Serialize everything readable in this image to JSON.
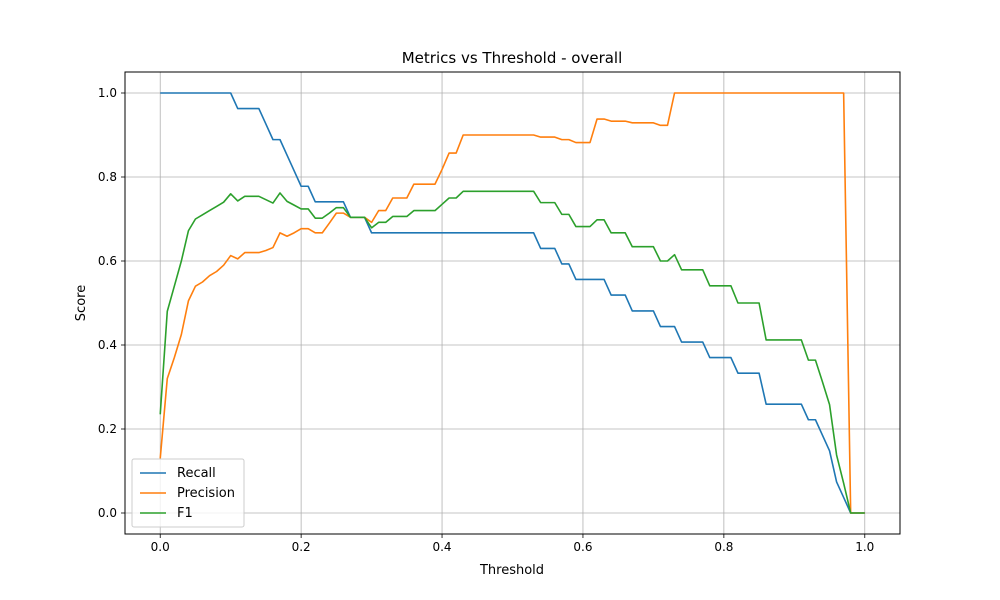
{
  "chart_data": {
    "type": "line",
    "title": "Metrics vs Threshold - overall",
    "xlabel": "Threshold",
    "ylabel": "Score",
    "xlim": [
      -0.05,
      1.05
    ],
    "ylim": [
      -0.05,
      1.05
    ],
    "xticks": [
      0.0,
      0.2,
      0.4,
      0.6,
      0.8,
      1.0
    ],
    "xtick_labels": [
      "0.0",
      "0.2",
      "0.4",
      "0.6",
      "0.8",
      "1.0"
    ],
    "yticks": [
      0.0,
      0.2,
      0.4,
      0.6,
      0.8,
      1.0
    ],
    "ytick_labels": [
      "0.0",
      "0.2",
      "0.4",
      "0.6",
      "0.8",
      "1.0"
    ],
    "grid": true,
    "legend_position": "lower-left",
    "x": [
      0.0,
      0.01,
      0.02,
      0.03,
      0.04,
      0.05,
      0.06,
      0.07,
      0.08,
      0.09,
      0.1,
      0.11,
      0.12,
      0.13,
      0.14,
      0.15,
      0.16,
      0.17,
      0.18,
      0.19,
      0.2,
      0.21,
      0.22,
      0.23,
      0.24,
      0.25,
      0.26,
      0.27,
      0.28,
      0.29,
      0.3,
      0.31,
      0.32,
      0.33,
      0.34,
      0.35,
      0.36,
      0.37,
      0.38,
      0.39,
      0.4,
      0.41,
      0.42,
      0.43,
      0.44,
      0.45,
      0.46,
      0.47,
      0.48,
      0.49,
      0.5,
      0.51,
      0.52,
      0.53,
      0.54,
      0.55,
      0.56,
      0.57,
      0.58,
      0.59,
      0.6,
      0.61,
      0.62,
      0.63,
      0.64,
      0.65,
      0.66,
      0.67,
      0.68,
      0.69,
      0.7,
      0.71,
      0.72,
      0.73,
      0.74,
      0.75,
      0.76,
      0.77,
      0.78,
      0.79,
      0.8,
      0.81,
      0.82,
      0.83,
      0.84,
      0.85,
      0.86,
      0.87,
      0.88,
      0.89,
      0.9,
      0.91,
      0.92,
      0.93,
      0.94,
      0.95,
      0.96,
      0.97,
      0.98,
      0.99,
      1.0
    ],
    "series": [
      {
        "name": "Recall",
        "color": "#1f77b4",
        "values": [
          1.0,
          1.0,
          1.0,
          1.0,
          1.0,
          1.0,
          1.0,
          1.0,
          1.0,
          1.0,
          1.0,
          0.963,
          0.963,
          0.963,
          0.963,
          0.926,
          0.889,
          0.889,
          0.852,
          0.815,
          0.778,
          0.778,
          0.741,
          0.741,
          0.741,
          0.741,
          0.741,
          0.704,
          0.704,
          0.704,
          0.667,
          0.667,
          0.667,
          0.667,
          0.667,
          0.667,
          0.667,
          0.667,
          0.667,
          0.667,
          0.667,
          0.667,
          0.667,
          0.667,
          0.667,
          0.667,
          0.667,
          0.667,
          0.667,
          0.667,
          0.667,
          0.667,
          0.667,
          0.667,
          0.63,
          0.63,
          0.63,
          0.593,
          0.593,
          0.556,
          0.556,
          0.556,
          0.556,
          0.556,
          0.519,
          0.519,
          0.519,
          0.481,
          0.481,
          0.481,
          0.481,
          0.444,
          0.444,
          0.444,
          0.407,
          0.407,
          0.407,
          0.407,
          0.37,
          0.37,
          0.37,
          0.37,
          0.333,
          0.333,
          0.333,
          0.333,
          0.259,
          0.259,
          0.259,
          0.259,
          0.259,
          0.259,
          0.222,
          0.222,
          0.185,
          0.148,
          0.074,
          0.037,
          0.0,
          0.0,
          0.0
        ]
      },
      {
        "name": "Precision",
        "color": "#ff7f0e",
        "values": [
          0.13,
          0.32,
          0.37,
          0.425,
          0.505,
          0.54,
          0.55,
          0.565,
          0.575,
          0.59,
          0.613,
          0.605,
          0.62,
          0.62,
          0.62,
          0.625,
          0.632,
          0.667,
          0.659,
          0.667,
          0.677,
          0.677,
          0.667,
          0.667,
          0.69,
          0.714,
          0.714,
          0.704,
          0.704,
          0.704,
          0.692,
          0.72,
          0.72,
          0.75,
          0.75,
          0.75,
          0.783,
          0.783,
          0.783,
          0.783,
          0.818,
          0.857,
          0.857,
          0.9,
          0.9,
          0.9,
          0.9,
          0.9,
          0.9,
          0.9,
          0.9,
          0.9,
          0.9,
          0.9,
          0.895,
          0.895,
          0.895,
          0.889,
          0.889,
          0.882,
          0.882,
          0.882,
          0.938,
          0.938,
          0.933,
          0.933,
          0.933,
          0.929,
          0.929,
          0.929,
          0.929,
          0.923,
          0.923,
          1.0,
          1.0,
          1.0,
          1.0,
          1.0,
          1.0,
          1.0,
          1.0,
          1.0,
          1.0,
          1.0,
          1.0,
          1.0,
          1.0,
          1.0,
          1.0,
          1.0,
          1.0,
          1.0,
          1.0,
          1.0,
          1.0,
          1.0,
          1.0,
          1.0,
          0.0,
          0.0,
          0.0
        ]
      },
      {
        "name": "F1",
        "color": "#2ca02c",
        "values": [
          0.235,
          0.48,
          0.54,
          0.6,
          0.672,
          0.7,
          0.71,
          0.72,
          0.73,
          0.74,
          0.76,
          0.743,
          0.754,
          0.754,
          0.754,
          0.746,
          0.738,
          0.762,
          0.742,
          0.733,
          0.724,
          0.724,
          0.702,
          0.702,
          0.714,
          0.727,
          0.727,
          0.704,
          0.704,
          0.704,
          0.679,
          0.692,
          0.692,
          0.706,
          0.706,
          0.706,
          0.72,
          0.72,
          0.72,
          0.72,
          0.735,
          0.75,
          0.75,
          0.766,
          0.766,
          0.766,
          0.766,
          0.766,
          0.766,
          0.766,
          0.766,
          0.766,
          0.766,
          0.766,
          0.739,
          0.739,
          0.739,
          0.711,
          0.711,
          0.682,
          0.682,
          0.682,
          0.698,
          0.698,
          0.667,
          0.667,
          0.667,
          0.634,
          0.634,
          0.634,
          0.634,
          0.6,
          0.6,
          0.615,
          0.579,
          0.579,
          0.579,
          0.579,
          0.541,
          0.541,
          0.541,
          0.541,
          0.5,
          0.5,
          0.5,
          0.5,
          0.412,
          0.412,
          0.412,
          0.412,
          0.412,
          0.412,
          0.364,
          0.364,
          0.312,
          0.258,
          0.138,
          0.071,
          0.0,
          0.0,
          0.0
        ]
      }
    ]
  }
}
